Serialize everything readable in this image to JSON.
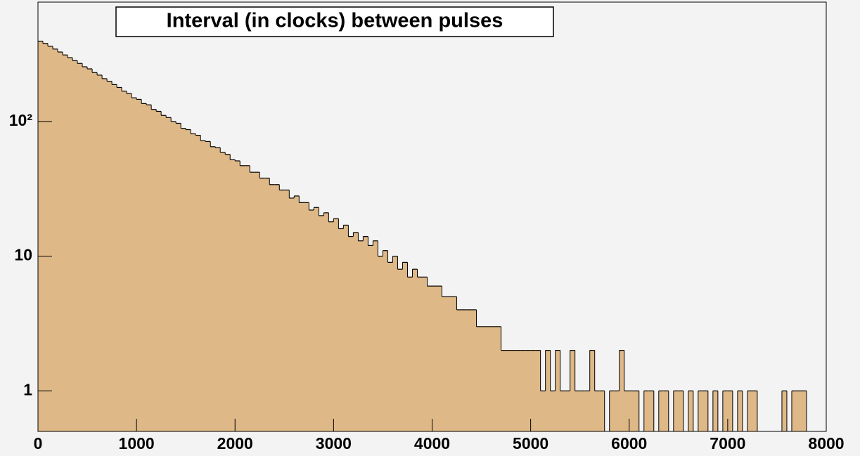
{
  "chart_data": {
    "type": "histogram",
    "title": "Interval (in clocks) between pulses",
    "bins": [
      0,
      50,
      100,
      150,
      200,
      250,
      300,
      350,
      400,
      450,
      500,
      550,
      600,
      650,
      700,
      750,
      800,
      850,
      900,
      950,
      1000,
      1050,
      1100,
      1150,
      1200,
      1250,
      1300,
      1350,
      1400,
      1450,
      1500,
      1550,
      1600,
      1650,
      1700,
      1750,
      1800,
      1850,
      1900,
      1950,
      2000,
      2050,
      2100,
      2150,
      2200,
      2250,
      2300,
      2350,
      2400,
      2450,
      2500,
      2550,
      2600,
      2650,
      2700,
      2750,
      2800,
      2850,
      2900,
      2950,
      3000,
      3050,
      3100,
      3150,
      3200,
      3250,
      3300,
      3350,
      3400,
      3450,
      3500,
      3550,
      3600,
      3650,
      3700,
      3750,
      3800,
      3850,
      3900,
      3950,
      4000,
      4050,
      4100,
      4150,
      4200,
      4250,
      4300,
      4350,
      4400,
      4450,
      4500,
      4550,
      4600,
      4650,
      4700,
      4750,
      4800,
      4850,
      4900,
      4950,
      5000,
      5050,
      5100,
      5150,
      5200,
      5250,
      5300,
      5350,
      5400,
      5450,
      5500,
      5550,
      5600,
      5650,
      5700,
      5750,
      5800,
      5850,
      5900,
      5950,
      6000,
      6050,
      6100,
      6150,
      6200,
      6250,
      6300,
      6350,
      6400,
      6450,
      6500,
      6550,
      6600,
      6650,
      6700,
      6750,
      6800,
      6850,
      6900,
      6950,
      7000,
      7050,
      7100,
      7150,
      7200,
      7250,
      7300,
      7350,
      7400,
      7450,
      7500,
      7550,
      7600,
      7650,
      7700,
      7750,
      7800,
      7850,
      7900,
      7950,
      8000
    ],
    "values": [
      395,
      380,
      362,
      345,
      328,
      312,
      298,
      283,
      270,
      255,
      246,
      231,
      221,
      208,
      199,
      188,
      179,
      168,
      161,
      150,
      146,
      136,
      133,
      123,
      119,
      111,
      107,
      100,
      97,
      89,
      87,
      81,
      79,
      72,
      71,
      65,
      64,
      59,
      57,
      52,
      51,
      47,
      47,
      42,
      42,
      38,
      38,
      34,
      34,
      31,
      31,
      27,
      28,
      25,
      25,
      22,
      23,
      20,
      21,
      18,
      19,
      16,
      17,
      14,
      15,
      13,
      14,
      12,
      13,
      10,
      11,
      9,
      10,
      8,
      9,
      7,
      8,
      7,
      7,
      6,
      6,
      6,
      5,
      5,
      5,
      4,
      4,
      4,
      4,
      3,
      3,
      3,
      3,
      3,
      2,
      2,
      2,
      2,
      2,
      2,
      2,
      2,
      1,
      2,
      1,
      2,
      1,
      1,
      2,
      1,
      1,
      1,
      2,
      1,
      1,
      0,
      1,
      1,
      2,
      1,
      1,
      1,
      0,
      1,
      1,
      0,
      1,
      1,
      0,
      1,
      1,
      0,
      1,
      0,
      1,
      1,
      0,
      1,
      0,
      1,
      1,
      0,
      1,
      0,
      1,
      1,
      0,
      0,
      0,
      0,
      0,
      1,
      0,
      1,
      1,
      1,
      0,
      0,
      0,
      0
    ],
    "color": "#deb887",
    "xlim": [
      0,
      8000
    ],
    "xticks": [
      0,
      1000,
      2000,
      3000,
      4000,
      5000,
      6000,
      7000,
      8000
    ],
    "ylim": [
      0.5,
      770
    ],
    "log_y": true,
    "yticks": [
      1,
      10,
      {
        "value": 100,
        "label": "10²"
      }
    ]
  }
}
